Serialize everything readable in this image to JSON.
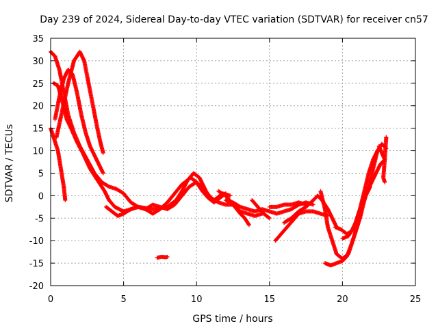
{
  "chart_data": {
    "type": "scatter",
    "title": "Day 239 of 2024, Sidereal Day-to-day VTEC variation (SDTVAR) for receiver cn57",
    "xlabel": "GPS time / hours",
    "ylabel": "SDTVAR / TECUs",
    "xlim": [
      0,
      25
    ],
    "ylim": [
      -20,
      35
    ],
    "xticks": [
      0,
      5,
      10,
      15,
      20,
      25
    ],
    "xtick_labels": [
      "0",
      "5",
      "10",
      "15",
      "20",
      "25"
    ],
    "yticks": [
      -20,
      -15,
      -10,
      -5,
      0,
      5,
      10,
      15,
      20,
      25,
      30,
      35
    ],
    "ytick_labels": [
      "-20",
      "-15",
      "-10",
      "-5",
      "0",
      "5",
      "10",
      "15",
      "20",
      "25",
      "30",
      "35"
    ],
    "grid": true,
    "marker": "plus",
    "color": "#ff0000",
    "series": [
      {
        "name": "track-1",
        "points": [
          [
            0.0,
            32.0
          ],
          [
            0.3,
            31.0
          ],
          [
            0.6,
            28.0
          ],
          [
            0.9,
            23.0
          ],
          [
            1.2,
            18.0
          ],
          [
            1.6,
            14.0
          ],
          [
            2.0,
            11.0
          ],
          [
            2.5,
            8.0
          ],
          [
            3.0,
            5.0
          ],
          [
            3.5,
            3.0
          ],
          [
            4.0,
            2.0
          ],
          [
            4.5,
            1.5
          ],
          [
            5.0,
            0.5
          ],
          [
            5.5,
            -1.5
          ],
          [
            6.0,
            -2.5
          ],
          [
            7.0,
            -3.0
          ],
          [
            8.0,
            -2.5
          ],
          [
            8.6,
            -1.0
          ],
          [
            9.0,
            1.0
          ],
          [
            9.4,
            3.5
          ],
          [
            9.8,
            5.0
          ],
          [
            10.2,
            4.0
          ],
          [
            10.5,
            2.0
          ],
          [
            10.8,
            0.0
          ],
          [
            11.2,
            -1.0
          ],
          [
            11.8,
            0.5
          ],
          [
            12.3,
            0.0
          ]
        ]
      },
      {
        "name": "track-2",
        "points": [
          [
            0.2,
            25.0
          ],
          [
            0.5,
            24.5
          ],
          [
            0.8,
            21.0
          ],
          [
            1.1,
            17.0
          ],
          [
            1.4,
            15.0
          ],
          [
            1.8,
            12.0
          ],
          [
            2.2,
            9.5
          ],
          [
            2.7,
            6.0
          ],
          [
            3.2,
            3.5
          ],
          [
            3.7,
            1.0
          ],
          [
            4.0,
            -1.0
          ],
          [
            4.4,
            -2.5
          ],
          [
            5.0,
            -3.5
          ],
          [
            5.5,
            -3.0
          ],
          [
            6.0,
            -2.5
          ],
          [
            6.5,
            -3.0
          ],
          [
            7.0,
            -4.0
          ],
          [
            7.5,
            -3.0
          ],
          [
            8.0,
            -1.5
          ],
          [
            8.5,
            0.5
          ],
          [
            9.0,
            2.5
          ],
          [
            9.6,
            4.0
          ],
          [
            10.0,
            3.0
          ],
          [
            10.4,
            1.0
          ],
          [
            10.8,
            -0.5
          ],
          [
            11.2,
            -1.5
          ],
          [
            11.6,
            -0.5
          ],
          [
            12.0,
            0.5
          ]
        ]
      },
      {
        "name": "track-3",
        "points": [
          [
            0.0,
            15.0
          ],
          [
            0.3,
            12.0
          ],
          [
            0.5,
            10.0
          ],
          [
            0.7,
            6.0
          ],
          [
            0.9,
            2.0
          ],
          [
            1.0,
            -1.0
          ]
        ]
      },
      {
        "name": "track-4",
        "points": [
          [
            0.3,
            17.0
          ],
          [
            0.6,
            22.0
          ],
          [
            0.9,
            26.0
          ],
          [
            1.2,
            28.0
          ],
          [
            1.5,
            27.0
          ],
          [
            1.8,
            23.0
          ],
          [
            2.1,
            18.0
          ],
          [
            2.4,
            14.0
          ],
          [
            2.7,
            11.0
          ],
          [
            3.0,
            9.0
          ],
          [
            3.3,
            7.0
          ],
          [
            3.6,
            5.0
          ]
        ]
      },
      {
        "name": "track-5",
        "points": [
          [
            0.4,
            13.0
          ],
          [
            0.8,
            19.0
          ],
          [
            1.2,
            25.0
          ],
          [
            1.6,
            30.0
          ],
          [
            2.0,
            32.0
          ],
          [
            2.3,
            30.0
          ],
          [
            2.6,
            25.0
          ],
          [
            2.9,
            20.0
          ],
          [
            3.2,
            15.0
          ],
          [
            3.4,
            12.0
          ],
          [
            3.6,
            9.5
          ]
        ]
      },
      {
        "name": "track-6",
        "points": [
          [
            3.8,
            -2.5
          ],
          [
            4.2,
            -3.5
          ],
          [
            4.6,
            -4.5
          ],
          [
            5.0,
            -4.0
          ],
          [
            5.5,
            -3.0
          ],
          [
            6.0,
            -2.5
          ],
          [
            6.5,
            -3.0
          ],
          [
            7.0,
            -2.0
          ],
          [
            7.5,
            -2.5
          ],
          [
            8.0,
            -3.0
          ],
          [
            8.5,
            -2.0
          ],
          [
            9.0,
            0.0
          ],
          [
            9.5,
            2.0
          ],
          [
            10.0,
            3.0
          ],
          [
            10.5,
            1.5
          ],
          [
            11.0,
            -0.5
          ],
          [
            11.5,
            -1.5
          ],
          [
            12.0,
            -2.0
          ],
          [
            12.5,
            -2.0
          ],
          [
            13.0,
            -3.5
          ],
          [
            13.5,
            -4.0
          ],
          [
            14.0,
            -4.5
          ],
          [
            14.5,
            -4.0
          ]
        ]
      },
      {
        "name": "track-7",
        "points": [
          [
            11.5,
            1.0
          ],
          [
            12.0,
            0.0
          ],
          [
            12.5,
            -2.0
          ],
          [
            13.0,
            -4.0
          ],
          [
            13.3,
            -5.0
          ],
          [
            13.6,
            -6.5
          ]
        ]
      },
      {
        "name": "track-8",
        "points": [
          [
            12.0,
            -1.0
          ],
          [
            12.5,
            -1.5
          ],
          [
            13.0,
            -2.5
          ],
          [
            13.5,
            -3.0
          ],
          [
            14.0,
            -3.5
          ],
          [
            14.5,
            -3.0
          ],
          [
            15.0,
            -3.5
          ],
          [
            15.5,
            -4.0
          ],
          [
            16.0,
            -3.5
          ],
          [
            16.5,
            -3.0
          ],
          [
            17.0,
            -2.0
          ],
          [
            17.5,
            -1.5
          ],
          [
            18.0,
            -2.0
          ]
        ]
      },
      {
        "name": "track-9",
        "points": [
          [
            13.8,
            -1.0
          ],
          [
            14.2,
            -2.5
          ],
          [
            14.6,
            -4.0
          ],
          [
            15.0,
            -5.0
          ]
        ]
      },
      {
        "name": "track-10",
        "points": [
          [
            15.0,
            -2.5
          ],
          [
            15.5,
            -2.5
          ],
          [
            16.0,
            -2.0
          ],
          [
            16.5,
            -2.0
          ],
          [
            17.0,
            -1.5
          ],
          [
            17.5,
            -2.0
          ]
        ]
      },
      {
        "name": "track-11",
        "points": [
          [
            15.4,
            -10.0
          ],
          [
            15.8,
            -8.5
          ],
          [
            16.2,
            -7.0
          ],
          [
            16.6,
            -5.5
          ],
          [
            17.0,
            -4.0
          ],
          [
            17.5,
            -3.5
          ],
          [
            18.0,
            -3.5
          ],
          [
            18.5,
            -4.0
          ],
          [
            19.0,
            -4.5
          ]
        ]
      },
      {
        "name": "track-12",
        "points": [
          [
            16.0,
            -6.0
          ],
          [
            16.5,
            -5.0
          ],
          [
            17.0,
            -3.5
          ],
          [
            17.5,
            -2.5
          ],
          [
            18.0,
            -1.0
          ],
          [
            18.3,
            0.0
          ],
          [
            18.6,
            -1.0
          ],
          [
            19.0,
            -3.0
          ],
          [
            19.3,
            -5.0
          ],
          [
            19.6,
            -7.0
          ]
        ]
      },
      {
        "name": "track-13",
        "points": [
          [
            18.5,
            1.0
          ],
          [
            18.8,
            -3.0
          ],
          [
            19.0,
            -7.0
          ],
          [
            19.3,
            -10.0
          ],
          [
            19.6,
            -13.0
          ],
          [
            20.0,
            -14.0
          ],
          [
            20.4,
            -13.0
          ],
          [
            20.7,
            -10.0
          ],
          [
            21.0,
            -7.0
          ],
          [
            21.3,
            -3.0
          ],
          [
            21.6,
            0.0
          ],
          [
            21.9,
            2.0
          ]
        ]
      },
      {
        "name": "track-14",
        "points": [
          [
            18.8,
            -15.0
          ],
          [
            19.2,
            -15.5
          ],
          [
            19.6,
            -15.0
          ],
          [
            20.0,
            -14.5
          ],
          [
            20.3,
            -13.5
          ],
          [
            20.6,
            -11.0
          ],
          [
            20.9,
            -8.0
          ],
          [
            21.2,
            -5.0
          ],
          [
            21.5,
            -1.0
          ],
          [
            21.8,
            2.0
          ],
          [
            22.1,
            6.0
          ],
          [
            22.4,
            10.0
          ],
          [
            22.7,
            11.5
          ],
          [
            23.0,
            10.5
          ]
        ]
      },
      {
        "name": "track-15",
        "points": [
          [
            19.5,
            -7.0
          ],
          [
            19.9,
            -7.5
          ],
          [
            20.3,
            -8.5
          ],
          [
            20.6,
            -8.0
          ],
          [
            20.9,
            -6.0
          ],
          [
            21.2,
            -3.0
          ],
          [
            21.5,
            1.0
          ],
          [
            21.8,
            5.0
          ],
          [
            22.1,
            8.0
          ],
          [
            22.4,
            10.0
          ]
        ]
      },
      {
        "name": "track-16",
        "points": [
          [
            20.0,
            -9.5
          ],
          [
            20.4,
            -9.0
          ],
          [
            20.8,
            -7.0
          ],
          [
            21.1,
            -4.0
          ],
          [
            21.4,
            -1.0
          ],
          [
            21.7,
            1.0
          ],
          [
            22.0,
            3.0
          ],
          [
            22.3,
            5.0
          ],
          [
            22.6,
            7.0
          ],
          [
            22.9,
            8.0
          ],
          [
            22.8,
            4.0
          ],
          [
            22.9,
            3.0
          ]
        ]
      },
      {
        "name": "track-17",
        "points": [
          [
            22.5,
            11.0
          ],
          [
            22.7,
            9.5
          ],
          [
            22.9,
            8.0
          ],
          [
            23.0,
            13.0
          ]
        ]
      },
      {
        "name": "track-18",
        "points": [
          [
            7.3,
            -13.8
          ],
          [
            7.6,
            -13.6
          ],
          [
            7.9,
            -13.7
          ],
          [
            8.0,
            -13.6
          ]
        ]
      }
    ]
  }
}
